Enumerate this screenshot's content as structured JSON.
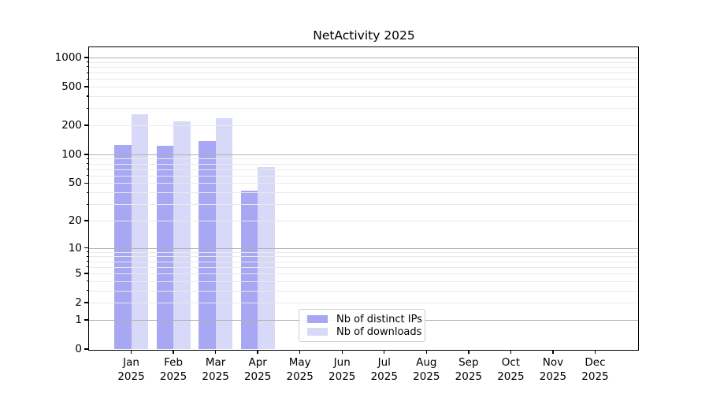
{
  "chart_data": {
    "type": "bar",
    "title": "NetActivity 2025",
    "categories": [
      "Jan 2025",
      "Feb 2025",
      "Mar 2025",
      "Apr 2025",
      "May 2025",
      "Jun 2025",
      "Jul 2025",
      "Aug 2025",
      "Sep 2025",
      "Oct 2025",
      "Nov 2025",
      "Dec 2025"
    ],
    "series": [
      {
        "name": "Nb of distinct IPs",
        "color": "#a7a7f3",
        "values": [
          125,
          123,
          137,
          42,
          0,
          0,
          0,
          0,
          0,
          0,
          0,
          0
        ]
      },
      {
        "name": "Nb of downloads",
        "color": "#d8d8f8",
        "values": [
          260,
          218,
          235,
          73,
          0,
          0,
          0,
          0,
          0,
          0,
          0,
          0
        ]
      }
    ],
    "yscale": "log1p",
    "yticks": [
      0,
      1,
      2,
      5,
      10,
      20,
      50,
      100,
      200,
      500,
      1000
    ],
    "ylim": [
      0,
      1300
    ],
    "xlabel": "",
    "ylabel": "",
    "grid": true,
    "legend_position": "bottom-center-inside"
  },
  "colors": {
    "grid_major": "#b0b0b0",
    "grid_minor": "#eaeaea",
    "spine": "#000000",
    "background": "#ffffff",
    "text": "#000000"
  }
}
